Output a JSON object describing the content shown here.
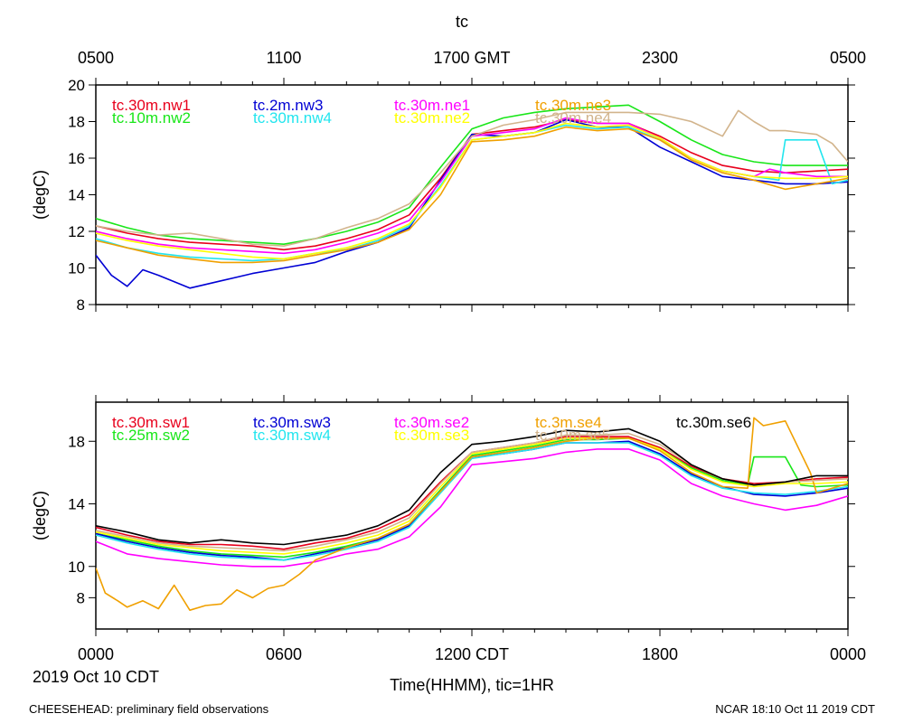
{
  "title": "tc",
  "top_axis_ticks": [
    "0500",
    "1100",
    "1700 GMT",
    "2300",
    "0500"
  ],
  "bottom_axis_ticks": [
    "0000",
    "0600",
    "1200 CDT",
    "1800",
    "0000"
  ],
  "date_label": "2019 Oct 10 CDT",
  "x_axis_label": "Time(HHMM), tic=1HR",
  "footer_left": "CHEESEHEAD: preliminary field observations",
  "footer_right": "NCAR 18:10 Oct 11 2019 CDT",
  "chart_data": [
    {
      "type": "line",
      "ylabel": "(degC)",
      "xlim": [
        0,
        24
      ],
      "ylim": [
        8,
        20
      ],
      "yticks": [
        8,
        10,
        12,
        14,
        16,
        18,
        20
      ],
      "legend_rows": 2,
      "series": [
        {
          "name": "tc.30m.nw1",
          "color": "#e8001c",
          "x": [
            0,
            1,
            2,
            3,
            4,
            5,
            6,
            7,
            8,
            9,
            10,
            11,
            12,
            13,
            14,
            15,
            16,
            17,
            18,
            19,
            20,
            21,
            22,
            23,
            24
          ],
          "y": [
            12.3,
            11.9,
            11.6,
            11.4,
            11.3,
            11.2,
            11.0,
            11.2,
            11.6,
            12.1,
            12.9,
            14.9,
            17.3,
            17.5,
            17.7,
            18.1,
            17.9,
            17.9,
            17.2,
            16.3,
            15.6,
            15.3,
            15.2,
            15.3,
            15.4
          ]
        },
        {
          "name": "tc.10m.nw2",
          "color": "#19e619",
          "x": [
            0,
            1,
            2,
            3,
            4,
            5,
            6,
            7,
            8,
            9,
            10,
            11,
            12,
            13,
            14,
            15,
            16,
            17,
            18,
            19,
            20,
            21,
            22,
            23,
            24
          ],
          "y": [
            12.7,
            12.2,
            11.8,
            11.6,
            11.5,
            11.4,
            11.3,
            11.6,
            12.0,
            12.5,
            13.3,
            15.5,
            17.6,
            18.2,
            18.5,
            18.7,
            18.8,
            18.9,
            18.0,
            17.0,
            16.2,
            15.8,
            15.6,
            15.6,
            15.6
          ]
        },
        {
          "name": "tc.2m.nw3",
          "color": "#0000d4",
          "x": [
            0,
            0.5,
            1,
            1.5,
            2,
            3,
            4,
            5,
            6,
            7,
            8,
            9,
            10,
            11,
            12,
            13,
            14,
            15,
            16,
            17,
            18,
            19,
            20,
            21,
            22,
            23,
            24
          ],
          "y": [
            10.7,
            9.6,
            9.0,
            9.9,
            9.6,
            8.9,
            9.3,
            9.7,
            10.0,
            10.3,
            10.9,
            11.4,
            12.2,
            14.8,
            17.3,
            17.2,
            17.4,
            18.1,
            17.7,
            17.7,
            16.6,
            15.8,
            15.0,
            14.8,
            14.6,
            14.6,
            14.7
          ]
        },
        {
          "name": "tc.30m.nw4",
          "color": "#22e5ee",
          "x": [
            0,
            1,
            2,
            3,
            4,
            5,
            6,
            7,
            8,
            9,
            10,
            11,
            12,
            13,
            14,
            15,
            16,
            17,
            18,
            19,
            20,
            21,
            21.8,
            22,
            23,
            23.5,
            24
          ],
          "y": [
            11.6,
            11.1,
            10.8,
            10.6,
            10.5,
            10.4,
            10.5,
            10.8,
            11.0,
            11.5,
            12.3,
            14.5,
            17.0,
            17.2,
            17.4,
            17.8,
            17.6,
            17.7,
            17.0,
            16.0,
            15.3,
            15.0,
            14.8,
            17.0,
            17.0,
            14.6,
            14.8
          ]
        },
        {
          "name": "tc.30m.ne1",
          "color": "#ff00ff",
          "x": [
            0,
            1,
            2,
            3,
            4,
            5,
            6,
            7,
            8,
            9,
            10,
            11,
            12,
            13,
            14,
            15,
            16,
            17,
            18,
            19,
            20,
            21,
            21.5,
            22,
            23,
            24
          ],
          "y": [
            12.0,
            11.6,
            11.3,
            11.1,
            11.0,
            10.9,
            10.8,
            11.0,
            11.4,
            11.9,
            12.6,
            14.7,
            17.2,
            17.4,
            17.6,
            18.2,
            17.9,
            17.9,
            17.1,
            16.0,
            15.3,
            15.0,
            15.4,
            15.2,
            15.0,
            15.0
          ]
        },
        {
          "name": "tc.30m.ne2",
          "color": "#ffff00",
          "x": [
            0,
            1,
            2,
            3,
            4,
            5,
            6,
            7,
            8,
            9,
            10,
            11,
            12,
            13,
            14,
            15,
            16,
            17,
            18,
            19,
            20,
            21,
            22,
            23,
            24
          ],
          "y": [
            11.9,
            11.5,
            11.2,
            11.0,
            10.8,
            10.6,
            10.5,
            10.8,
            11.1,
            11.6,
            12.4,
            14.4,
            17.0,
            17.2,
            17.4,
            17.9,
            17.7,
            17.8,
            17.1,
            16.0,
            15.3,
            15.0,
            14.9,
            14.9,
            15.0
          ]
        },
        {
          "name": "tc.30m.ne3",
          "color": "#f0a000",
          "x": [
            0,
            1,
            2,
            3,
            4,
            5,
            6,
            7,
            8,
            9,
            10,
            11,
            12,
            13,
            14,
            15,
            16,
            17,
            18,
            19,
            20,
            21,
            22,
            23,
            24
          ],
          "y": [
            11.5,
            11.1,
            10.7,
            10.5,
            10.3,
            10.3,
            10.4,
            10.7,
            11.0,
            11.4,
            12.1,
            14.0,
            16.9,
            17.0,
            17.2,
            17.7,
            17.5,
            17.6,
            17.0,
            15.9,
            15.2,
            14.8,
            14.3,
            14.6,
            14.9
          ]
        },
        {
          "name": "tc.30m.ne4",
          "color": "#d2b48c",
          "x": [
            0,
            1,
            2,
            3,
            4,
            5,
            6,
            7,
            8,
            9,
            10,
            11,
            12,
            13,
            14,
            15,
            16,
            17,
            18,
            19,
            20,
            20.5,
            21,
            21.5,
            22,
            23,
            23.5,
            24
          ],
          "y": [
            12.3,
            12.0,
            11.8,
            11.9,
            11.6,
            11.3,
            11.2,
            11.6,
            12.2,
            12.7,
            13.5,
            15.2,
            17.2,
            17.8,
            18.1,
            18.5,
            18.5,
            18.5,
            18.4,
            18.0,
            17.2,
            18.6,
            18.0,
            17.5,
            17.5,
            17.3,
            16.8,
            15.8
          ]
        }
      ]
    },
    {
      "type": "line",
      "ylabel": "(degC)",
      "xlim": [
        0,
        24
      ],
      "ylim": [
        6,
        20.5
      ],
      "yticks": [
        8,
        10,
        14,
        18
      ],
      "legend_rows": 2,
      "series": [
        {
          "name": "tc.30m.sw1",
          "color": "#e8001c",
          "x": [
            0,
            1,
            2,
            3,
            4,
            5,
            6,
            7,
            8,
            9,
            10,
            11,
            12,
            13,
            14,
            15,
            16,
            17,
            18,
            19,
            20,
            21,
            22,
            23,
            24
          ],
          "y": [
            12.5,
            12.0,
            11.6,
            11.4,
            11.4,
            11.3,
            11.1,
            11.5,
            11.8,
            12.4,
            13.3,
            15.4,
            17.3,
            17.6,
            17.9,
            18.3,
            18.3,
            18.3,
            17.6,
            16.4,
            15.6,
            15.3,
            15.4,
            15.6,
            15.7
          ]
        },
        {
          "name": "tc.25m.sw2",
          "color": "#19e619",
          "x": [
            0,
            1,
            2,
            3,
            4,
            5,
            6,
            7,
            8,
            9,
            10,
            11,
            12,
            13,
            14,
            15,
            16,
            17,
            18,
            19,
            20,
            20.8,
            21,
            22,
            22.5,
            23,
            24
          ],
          "y": [
            12.1,
            11.7,
            11.3,
            11.0,
            10.8,
            10.7,
            10.6,
            10.9,
            11.3,
            11.8,
            12.7,
            14.9,
            17.1,
            17.4,
            17.7,
            18.1,
            18.1,
            18.2,
            17.5,
            16.3,
            15.5,
            15.2,
            17.0,
            17.0,
            15.2,
            15.1,
            15.2
          ]
        },
        {
          "name": "tc.30m.sw3",
          "color": "#0000d4",
          "x": [
            0,
            1,
            2,
            3,
            4,
            5,
            6,
            7,
            8,
            9,
            10,
            11,
            12,
            13,
            14,
            15,
            16,
            17,
            18,
            19,
            20,
            21,
            22,
            23,
            24
          ],
          "y": [
            12.1,
            11.6,
            11.2,
            10.9,
            10.7,
            10.6,
            10.4,
            10.8,
            11.2,
            11.7,
            12.6,
            14.8,
            17.0,
            17.2,
            17.5,
            17.9,
            17.9,
            18.0,
            17.2,
            15.9,
            15.1,
            14.6,
            14.5,
            14.7,
            15.0
          ]
        },
        {
          "name": "tc.30m.sw4",
          "color": "#22e5ee",
          "x": [
            0,
            1,
            2,
            3,
            4,
            5,
            6,
            7,
            8,
            9,
            10,
            11,
            12,
            13,
            14,
            15,
            16,
            17,
            18,
            19,
            20,
            21,
            22,
            23,
            24
          ],
          "y": [
            12.0,
            11.5,
            11.1,
            10.8,
            10.6,
            10.5,
            10.4,
            10.7,
            11.1,
            11.6,
            12.5,
            14.7,
            16.9,
            17.2,
            17.5,
            17.9,
            17.9,
            17.9,
            17.1,
            15.8,
            15.0,
            14.7,
            14.6,
            14.8,
            15.1
          ]
        },
        {
          "name": "tc.30m.se2",
          "color": "#ff00ff",
          "x": [
            0,
            1,
            2,
            3,
            4,
            5,
            6,
            7,
            8,
            9,
            10,
            11,
            12,
            13,
            14,
            15,
            16,
            17,
            18,
            19,
            20,
            21,
            22,
            23,
            24
          ],
          "y": [
            11.6,
            10.8,
            10.5,
            10.3,
            10.1,
            10.0,
            10.0,
            10.3,
            10.8,
            11.1,
            11.9,
            13.8,
            16.5,
            16.7,
            16.9,
            17.3,
            17.5,
            17.5,
            16.8,
            15.3,
            14.5,
            14.0,
            13.6,
            13.9,
            14.5
          ]
        },
        {
          "name": "tc.30m.se3",
          "color": "#ffff00",
          "x": [
            0,
            1,
            2,
            3,
            4,
            5,
            6,
            7,
            8,
            9,
            10,
            11,
            12,
            13,
            14,
            15,
            16,
            17,
            18,
            19,
            20,
            21,
            22,
            23,
            24
          ],
          "y": [
            12.2,
            11.8,
            11.4,
            11.2,
            11.0,
            10.9,
            10.8,
            11.1,
            11.5,
            12.0,
            12.9,
            15.1,
            17.2,
            17.5,
            17.8,
            18.2,
            18.2,
            18.2,
            17.5,
            16.2,
            15.4,
            15.1,
            15.3,
            15.3,
            15.4
          ]
        },
        {
          "name": "tc.3m.se4",
          "color": "#f0a000",
          "x": [
            0,
            0.3,
            0.7,
            1,
            1.5,
            2,
            2.5,
            3,
            3.5,
            4,
            4.5,
            5,
            5.5,
            6,
            6.5,
            7,
            8,
            9,
            10,
            11,
            12,
            13,
            14,
            15,
            16,
            17,
            18,
            19,
            20,
            20.8,
            21,
            21.3,
            22,
            22.8,
            23,
            24
          ],
          "y": [
            9.9,
            8.3,
            7.8,
            7.4,
            7.8,
            7.3,
            8.8,
            7.2,
            7.5,
            7.6,
            8.5,
            8.0,
            8.6,
            8.8,
            9.5,
            10.4,
            11.2,
            11.8,
            12.7,
            14.8,
            17.0,
            17.3,
            17.6,
            18.0,
            18.2,
            18.2,
            17.4,
            16.0,
            15.1,
            15.0,
            19.5,
            19.0,
            19.3,
            16.0,
            14.7,
            15.3
          ]
        },
        {
          "name": "tc.10m.se5",
          "color": "#d2b48c",
          "x": [
            0,
            1,
            2,
            3,
            4,
            5,
            6,
            7,
            8,
            9,
            10,
            11,
            12,
            13,
            14,
            15,
            16,
            17,
            18,
            19,
            20,
            21,
            22,
            23,
            24
          ],
          "y": [
            12.3,
            11.9,
            11.5,
            11.3,
            11.2,
            11.1,
            11.0,
            11.3,
            11.7,
            12.2,
            13.1,
            15.3,
            17.3,
            17.6,
            17.9,
            18.4,
            18.4,
            18.5,
            17.8,
            16.5,
            15.6,
            15.2,
            15.4,
            15.5,
            15.6
          ]
        },
        {
          "name": "tc.30m.se6",
          "color": "#000000",
          "x": [
            0,
            1,
            2,
            3,
            4,
            5,
            6,
            7,
            8,
            9,
            10,
            11,
            12,
            13,
            14,
            15,
            16,
            17,
            18,
            19,
            20,
            21,
            22,
            23,
            24
          ],
          "y": [
            12.6,
            12.2,
            11.7,
            11.5,
            11.7,
            11.5,
            11.4,
            11.7,
            12.0,
            12.6,
            13.6,
            16.0,
            17.8,
            18.0,
            18.3,
            18.7,
            18.6,
            18.8,
            18.0,
            16.5,
            15.6,
            15.2,
            15.4,
            15.8,
            15.8
          ]
        }
      ]
    }
  ]
}
